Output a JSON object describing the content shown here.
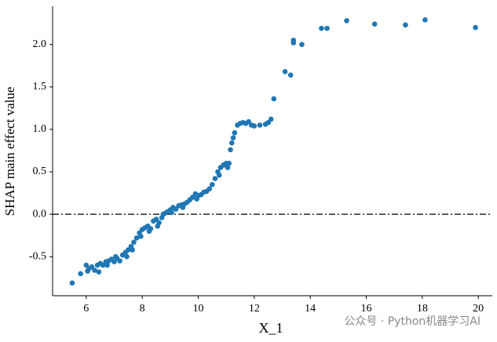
{
  "chart_data": {
    "type": "scatter",
    "xlabel": "X_1",
    "ylabel": "SHAP main effect value",
    "color": "#1f77b4",
    "hline": 0,
    "watermark": "公众号 · Python机器学习AI",
    "xlim": [
      4.8,
      20.5
    ],
    "ylim": [
      -0.96,
      2.45
    ],
    "xticks": [
      6,
      8,
      10,
      12,
      14,
      16,
      18,
      20
    ],
    "yticks": [
      {
        "value": -0.5,
        "label": "-0.5"
      },
      {
        "value": 0,
        "label": "0.0"
      },
      0.5,
      {
        "value": 1,
        "label": "1.0"
      },
      1.5,
      {
        "value": 2,
        "label": "2.0"
      }
    ],
    "x": [
      5.5,
      5.8,
      6.0,
      6.1,
      6.2,
      6.3,
      6.4,
      6.5,
      6.6,
      6.7,
      6.8,
      6.9,
      7.0,
      7.1,
      7.2,
      7.3,
      7.4,
      7.5,
      7.6,
      7.7,
      7.8,
      7.9,
      8.0,
      8.1,
      8.2,
      8.3,
      8.4,
      8.5,
      8.6,
      8.7,
      8.8,
      8.9,
      9.0,
      9.1,
      9.2,
      9.3,
      9.4,
      9.5,
      9.6,
      9.7,
      9.8,
      9.9,
      10.0,
      10.1,
      10.2,
      10.3,
      10.4,
      10.5,
      10.6,
      10.7,
      10.8,
      10.9,
      11.0,
      11.1,
      11.15,
      11.2,
      11.25,
      11.3,
      11.4,
      11.5,
      11.6,
      11.7,
      11.8,
      11.9,
      12.0,
      6.05,
      6.45,
      6.75,
      7.05,
      7.45,
      7.65,
      7.95,
      8.25,
      8.55,
      8.75,
      9.05,
      9.45,
      9.95,
      10.75,
      11.05,
      12.2,
      12.4,
      12.5,
      12.6,
      12.7,
      13.1,
      13.3,
      13.4,
      13.4,
      13.7,
      14.4,
      14.6,
      15.3,
      16.3,
      17.4,
      18.1,
      19.9
    ],
    "y": [
      -0.81,
      -0.7,
      -0.6,
      -0.64,
      -0.62,
      -0.66,
      -0.6,
      -0.58,
      -0.6,
      -0.56,
      -0.55,
      -0.53,
      -0.56,
      -0.52,
      -0.55,
      -0.48,
      -0.45,
      -0.42,
      -0.38,
      -0.33,
      -0.28,
      -0.22,
      -0.18,
      -0.16,
      -0.14,
      -0.17,
      -0.08,
      -0.06,
      -0.1,
      -0.04,
      0.01,
      0.03,
      0.05,
      0.08,
      0.06,
      0.1,
      0.11,
      0.12,
      0.14,
      0.17,
      0.2,
      0.24,
      0.22,
      0.23,
      0.26,
      0.27,
      0.3,
      0.35,
      0.42,
      0.5,
      0.55,
      0.58,
      0.6,
      0.6,
      0.76,
      0.84,
      0.9,
      0.96,
      1.05,
      1.07,
      1.08,
      1.07,
      1.09,
      1.05,
      1.04,
      -0.67,
      -0.68,
      -0.6,
      -0.5,
      -0.5,
      -0.42,
      -0.26,
      -0.2,
      -0.14,
      0.0,
      0.02,
      0.08,
      0.18,
      0.46,
      0.55,
      1.05,
      1.06,
      1.08,
      1.12,
      1.36,
      1.68,
      1.64,
      2.05,
      2.02,
      2.0,
      2.19,
      2.19,
      2.28,
      2.24,
      2.23,
      2.29,
      2.2
    ]
  }
}
